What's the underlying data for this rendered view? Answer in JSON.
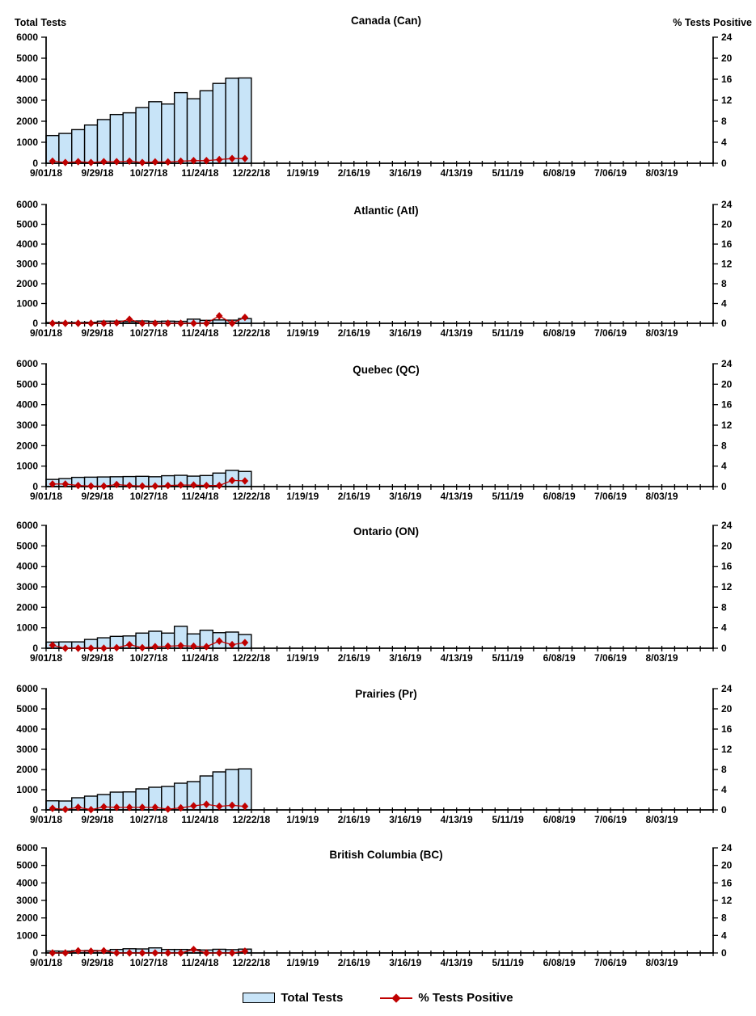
{
  "colors": {
    "bar_fill": "#C8E4F8",
    "bar_stroke": "#000000",
    "marker": "#C00000",
    "axis": "#000000"
  },
  "axes": {
    "left_title": "Total Tests",
    "right_title": "% Tests Positive",
    "left_ticks": [
      0,
      1000,
      2000,
      3000,
      4000,
      5000,
      6000
    ],
    "right_ticks": [
      0,
      4,
      8,
      12,
      16,
      20,
      24
    ],
    "left_max": 6000,
    "right_max": 24,
    "x_tick_count": 53,
    "x_label_every": 4,
    "x_labels": [
      "9/01/18",
      "9/29/18",
      "10/27/18",
      "11/24/18",
      "12/22/18",
      "1/19/19",
      "2/16/19",
      "3/16/19",
      "4/13/19",
      "5/11/19",
      "6/08/19",
      "7/06/19",
      "8/03/19"
    ]
  },
  "legend": {
    "total_tests": "Total Tests",
    "pct_positive": "% Tests Positive"
  },
  "chart_data": [
    {
      "type": "bar",
      "title": "Canada (Can)",
      "categories": [
        "9/01/18",
        "9/08/18",
        "9/15/18",
        "9/22/18",
        "9/29/18",
        "10/06/18",
        "10/13/18",
        "10/20/18",
        "10/27/18",
        "11/03/18",
        "11/10/18",
        "11/17/18",
        "11/24/18",
        "12/01/18",
        "12/08/18",
        "12/15/18"
      ],
      "xlabel": "",
      "ylabel_left": "Total Tests",
      "ylabel_right": "% Tests Positive",
      "ylim_left": [
        0,
        6000
      ],
      "ylim_right": [
        0,
        24
      ],
      "grid": false,
      "series": [
        {
          "name": "Total Tests",
          "kind": "bar",
          "axis": "left",
          "values": [
            1320,
            1420,
            1600,
            1820,
            2080,
            2320,
            2400,
            2650,
            2930,
            2820,
            3360,
            3070,
            3450,
            3800,
            4050,
            4060
          ]
        },
        {
          "name": "% Tests Positive",
          "kind": "line",
          "axis": "right",
          "values": [
            0.4,
            0.15,
            0.3,
            0.15,
            0.3,
            0.3,
            0.4,
            0.15,
            0.25,
            0.25,
            0.4,
            0.5,
            0.5,
            0.7,
            0.9,
            0.9
          ]
        }
      ]
    },
    {
      "type": "bar",
      "title": "Atlantic (Atl)",
      "categories": [
        "9/01/18",
        "9/08/18",
        "9/15/18",
        "9/22/18",
        "9/29/18",
        "10/06/18",
        "10/13/18",
        "10/20/18",
        "10/27/18",
        "11/03/18",
        "11/10/18",
        "11/17/18",
        "11/24/18",
        "12/01/18",
        "12/08/18",
        "12/15/18"
      ],
      "ylim_left": [
        0,
        6000
      ],
      "ylim_right": [
        0,
        24
      ],
      "grid": false,
      "series": [
        {
          "name": "Total Tests",
          "kind": "bar",
          "axis": "left",
          "values": [
            40,
            40,
            40,
            50,
            110,
            110,
            90,
            120,
            100,
            110,
            100,
            210,
            150,
            170,
            160,
            240
          ]
        },
        {
          "name": "% Tests Positive",
          "kind": "line",
          "axis": "right",
          "values": [
            0,
            0,
            0,
            0,
            0,
            0.1,
            0.8,
            0,
            0,
            0,
            0,
            0,
            0,
            1.5,
            0,
            1.2
          ]
        }
      ]
    },
    {
      "type": "bar",
      "title": "Quebec (QC)",
      "categories": [
        "9/01/18",
        "9/08/18",
        "9/15/18",
        "9/22/18",
        "9/29/18",
        "10/06/18",
        "10/13/18",
        "10/20/18",
        "10/27/18",
        "11/03/18",
        "11/10/18",
        "11/17/18",
        "11/24/18",
        "12/01/18",
        "12/08/18",
        "12/15/18"
      ],
      "ylim_left": [
        0,
        6000
      ],
      "ylim_right": [
        0,
        24
      ],
      "grid": false,
      "series": [
        {
          "name": "Total Tests",
          "kind": "bar",
          "axis": "left",
          "values": [
            350,
            390,
            450,
            460,
            470,
            480,
            490,
            500,
            480,
            530,
            550,
            510,
            540,
            660,
            790,
            740
          ]
        },
        {
          "name": "% Tests Positive",
          "kind": "line",
          "axis": "right",
          "values": [
            0.5,
            0.5,
            0.2,
            0.1,
            0.1,
            0.4,
            0.2,
            0.1,
            0.1,
            0.2,
            0.3,
            0.3,
            0.2,
            0.2,
            1.2,
            1.1
          ]
        }
      ]
    },
    {
      "type": "bar",
      "title": "Ontario (ON)",
      "categories": [
        "9/01/18",
        "9/08/18",
        "9/15/18",
        "9/22/18",
        "9/29/18",
        "10/06/18",
        "10/13/18",
        "10/20/18",
        "10/27/18",
        "11/03/18",
        "11/10/18",
        "11/17/18",
        "11/24/18",
        "12/01/18",
        "12/08/18",
        "12/15/18"
      ],
      "ylim_left": [
        0,
        6000
      ],
      "ylim_right": [
        0,
        24
      ],
      "grid": false,
      "series": [
        {
          "name": "Total Tests",
          "kind": "bar",
          "axis": "left",
          "values": [
            300,
            310,
            310,
            430,
            510,
            580,
            600,
            740,
            830,
            740,
            1070,
            700,
            880,
            760,
            790,
            670
          ]
        },
        {
          "name": "% Tests Positive",
          "kind": "line",
          "axis": "right",
          "values": [
            0.6,
            0,
            0,
            0,
            0,
            0.1,
            0.7,
            0.1,
            0.3,
            0.4,
            0.5,
            0.4,
            0.3,
            1.4,
            0.7,
            1.1
          ]
        }
      ]
    },
    {
      "type": "bar",
      "title": "Prairies (Pr)",
      "categories": [
        "9/01/18",
        "9/08/18",
        "9/15/18",
        "9/22/18",
        "9/29/18",
        "10/06/18",
        "10/13/18",
        "10/20/18",
        "10/27/18",
        "11/03/18",
        "11/10/18",
        "11/17/18",
        "11/24/18",
        "12/01/18",
        "12/08/18",
        "12/15/18"
      ],
      "ylim_left": [
        0,
        6000
      ],
      "ylim_right": [
        0,
        24
      ],
      "grid": false,
      "series": [
        {
          "name": "Total Tests",
          "kind": "bar",
          "axis": "left",
          "values": [
            450,
            440,
            600,
            680,
            760,
            880,
            890,
            1040,
            1120,
            1160,
            1320,
            1400,
            1680,
            1880,
            2000,
            2030
          ]
        },
        {
          "name": "% Tests Positive",
          "kind": "line",
          "axis": "right",
          "values": [
            0.3,
            0.1,
            0.5,
            0.05,
            0.6,
            0.5,
            0.5,
            0.5,
            0.5,
            0.15,
            0.4,
            0.8,
            1.1,
            0.7,
            0.9,
            0.7
          ]
        }
      ]
    },
    {
      "type": "bar",
      "title": "British Columbia (BC)",
      "categories": [
        "9/01/18",
        "9/08/18",
        "9/15/18",
        "9/22/18",
        "9/29/18",
        "10/06/18",
        "10/13/18",
        "10/20/18",
        "10/27/18",
        "11/03/18",
        "11/10/18",
        "11/17/18",
        "11/24/18",
        "12/01/18",
        "12/08/18",
        "12/15/18"
      ],
      "ylim_left": [
        0,
        6000
      ],
      "ylim_right": [
        0,
        24
      ],
      "grid": false,
      "series": [
        {
          "name": "Total Tests",
          "kind": "bar",
          "axis": "left",
          "values": [
            110,
            100,
            130,
            140,
            130,
            200,
            240,
            230,
            290,
            200,
            200,
            190,
            170,
            210,
            190,
            220
          ]
        },
        {
          "name": "% Tests Positive",
          "kind": "line",
          "axis": "right",
          "values": [
            0,
            0,
            0.5,
            0.4,
            0.5,
            0,
            0,
            0,
            0,
            0,
            0,
            0.8,
            0,
            0,
            0,
            0.4
          ]
        }
      ]
    }
  ]
}
